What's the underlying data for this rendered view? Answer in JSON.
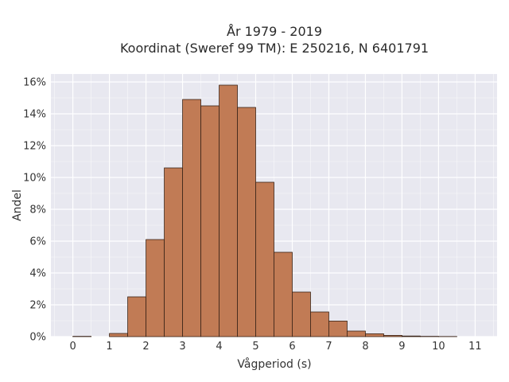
{
  "chart_data": {
    "type": "bar",
    "title": "År 1979 - 2019",
    "subtitle": "Koordinat (Sweref 99 TM): E 250216, N 6401791",
    "xlabel": "Vågperiod (s)",
    "ylabel": "Andel",
    "bin_width": 0.5,
    "x": [
      0,
      0.5,
      1,
      1.5,
      2,
      2.5,
      3,
      3.5,
      4,
      4.5,
      5,
      5.5,
      6,
      6.5,
      7,
      7.5,
      8,
      8.5,
      9,
      9.5,
      10,
      10.5
    ],
    "values": [
      0.02,
      0,
      0.2,
      2.5,
      6.1,
      10.6,
      14.9,
      14.5,
      15.8,
      14.4,
      9.7,
      5.3,
      2.8,
      1.55,
      0.98,
      0.35,
      0.18,
      0.08,
      0.04,
      0.02,
      0.01,
      0
    ],
    "xlim": [
      -0.6,
      11.6
    ],
    "ylim": [
      0,
      16.5
    ],
    "x_ticks": [
      0,
      1,
      2,
      3,
      4,
      5,
      6,
      7,
      8,
      9,
      10,
      11
    ],
    "x_tick_labels": [
      "0",
      "1",
      "2",
      "3",
      "4",
      "5",
      "6",
      "7",
      "8",
      "9",
      "10",
      "11"
    ],
    "y_ticks": [
      0,
      2,
      4,
      6,
      8,
      10,
      12,
      14,
      16
    ],
    "y_tick_labels": [
      "0%",
      "2%",
      "4%",
      "6%",
      "8%",
      "10%",
      "12%",
      "14%",
      "16%"
    ],
    "grid": true,
    "colors": {
      "bar_fill": "#c17b55",
      "bar_edge": "#3a2418",
      "plot_background": "#e8e8f0",
      "grid": "#ffffff"
    }
  }
}
